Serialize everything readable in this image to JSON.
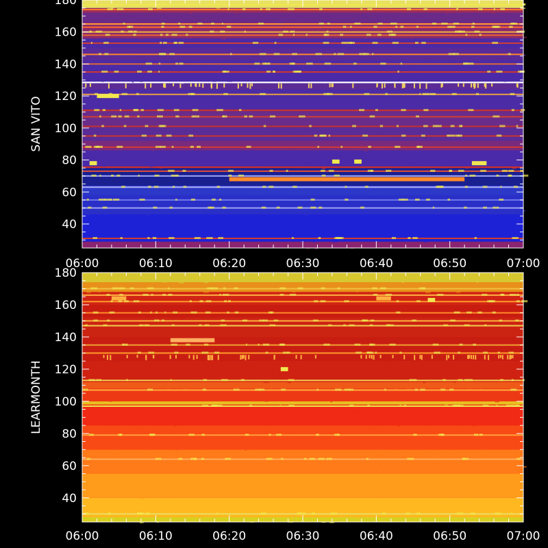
{
  "chart_data": [
    {
      "type": "heatmap",
      "station": "SAN VITO",
      "ylabel": "SAN VITO",
      "ylim": [
        25,
        180
      ],
      "yticks": [
        40,
        60,
        80,
        100,
        120,
        140,
        160,
        180
      ],
      "yticklabels": [
        "40",
        "60",
        "80",
        "100",
        "120",
        "140",
        "160",
        "180"
      ],
      "xlim": [
        "06:00",
        "07:00"
      ],
      "xticklabels": [
        "06:00",
        "06:10",
        "06:20",
        "06:30",
        "06:40",
        "06:50",
        "07:00"
      ],
      "colors": {
        "background": "#1c1fd0",
        "mid": "#4a2eaa",
        "high": "#b8283c",
        "peak": "#f0e850",
        "hot": "#ff8a2a"
      },
      "bands": [
        {
          "y0": 25,
          "y1": 29,
          "color": "#8a2470"
        },
        {
          "y0": 29,
          "y1": 46,
          "color": "#1e22d6"
        },
        {
          "y0": 46,
          "y1": 58,
          "color": "#2a2fc8"
        },
        {
          "y0": 58,
          "y1": 64,
          "color": "#2c38c8"
        },
        {
          "y0": 64,
          "y1": 75,
          "color": "#1a2090"
        },
        {
          "y0": 75,
          "y1": 76,
          "color": "#d0302a"
        },
        {
          "y0": 76,
          "y1": 86,
          "color": "#4a2aa8"
        },
        {
          "y0": 86,
          "y1": 92,
          "color": "#7a2a7c"
        },
        {
          "y0": 92,
          "y1": 100,
          "color": "#5a2c98"
        },
        {
          "y0": 100,
          "y1": 112,
          "color": "#6a2c8a"
        },
        {
          "y0": 112,
          "y1": 124,
          "color": "#4c2ca6"
        },
        {
          "y0": 124,
          "y1": 128,
          "color": "#5c2c96"
        },
        {
          "y0": 128,
          "y1": 129,
          "color": "#ffffff"
        },
        {
          "y0": 129,
          "y1": 142,
          "color": "#4a2aa8"
        },
        {
          "y0": 142,
          "y1": 150,
          "color": "#5a2a98"
        },
        {
          "y0": 150,
          "y1": 156,
          "color": "#4c2aa6"
        },
        {
          "y0": 156,
          "y1": 166,
          "color": "#8a2a6c"
        },
        {
          "y0": 166,
          "y1": 172,
          "color": "#6a2a88"
        },
        {
          "y0": 172,
          "y1": 175,
          "color": "#9a2c5c"
        },
        {
          "y0": 175,
          "y1": 180,
          "color": "#e8e060"
        }
      ],
      "lines": [
        {
          "y": 31,
          "color": "#d0402a"
        },
        {
          "y": 50,
          "color": "#9ea4f4"
        },
        {
          "y": 55,
          "color": "#7078e8"
        },
        {
          "y": 63,
          "color": "#b0b4f8"
        },
        {
          "y": 70,
          "color": "#9ea4f4"
        },
        {
          "y": 73,
          "color": "#e05038"
        },
        {
          "y": 88,
          "color": "#d03a30"
        },
        {
          "y": 95,
          "color": "#c8342e"
        },
        {
          "y": 101,
          "color": "#c0322e"
        },
        {
          "y": 107,
          "color": "#d04030"
        },
        {
          "y": 111,
          "color": "#c8342e"
        },
        {
          "y": 121,
          "color": "#e8a040"
        },
        {
          "y": 135,
          "color": "#d03830"
        },
        {
          "y": 140,
          "color": "#e06a30"
        },
        {
          "y": 146,
          "color": "#ff8a2a"
        },
        {
          "y": 153,
          "color": "#d04030"
        },
        {
          "y": 158,
          "color": "#e86a30"
        },
        {
          "y": 160,
          "color": "#f0b040"
        },
        {
          "y": 163,
          "color": "#ff6a2a"
        },
        {
          "y": 165,
          "color": "#ff9a3a"
        },
        {
          "y": 174,
          "color": "#ff7a2a"
        },
        {
          "y": 177,
          "color": "#f0e850"
        }
      ],
      "bursts": [
        {
          "t0": "06:01",
          "t1": "06:02",
          "y": 78,
          "color": "#f0e850"
        },
        {
          "t0": "06:34",
          "t1": "06:35",
          "y": 79,
          "color": "#f0e850"
        },
        {
          "t0": "06:37",
          "t1": "06:38",
          "y": 79,
          "color": "#f0e850"
        },
        {
          "t0": "06:53",
          "t1": "06:55",
          "y": 78,
          "color": "#f0e850"
        },
        {
          "t0": "06:20",
          "t1": "06:52",
          "y": 68,
          "color": "#ff8a2a"
        },
        {
          "t0": "06:02",
          "t1": "06:05",
          "y": 120,
          "color": "#f0e850"
        },
        {
          "t0": "06:00",
          "t1": "07:00",
          "y": 127,
          "color": "#f0d060"
        }
      ]
    },
    {
      "type": "heatmap",
      "station": "LEARMONTH",
      "ylabel": "LEARMONTH",
      "ylim": [
        25,
        180
      ],
      "yticks": [
        40,
        60,
        80,
        100,
        120,
        140,
        160,
        180
      ],
      "yticklabels": [
        "40",
        "60",
        "80",
        "100",
        "120",
        "140",
        "160",
        "180"
      ],
      "xlim": [
        "06:00",
        "07:00"
      ],
      "xticklabels": [
        "06:00",
        "06:10",
        "06:20",
        "06:30",
        "06:40",
        "06:50",
        "07:00"
      ],
      "colors": {
        "background": "#e8281a",
        "mid": "#f25a14",
        "high": "#ff9a22",
        "peak": "#f0e850"
      },
      "bands": [
        {
          "y0": 25,
          "y1": 28,
          "color": "#d8d020"
        },
        {
          "y0": 28,
          "y1": 40,
          "color": "#ffb820"
        },
        {
          "y0": 40,
          "y1": 55,
          "color": "#ff9c1c"
        },
        {
          "y0": 55,
          "y1": 70,
          "color": "#ff7a18"
        },
        {
          "y0": 70,
          "y1": 85,
          "color": "#f84a14"
        },
        {
          "y0": 85,
          "y1": 98,
          "color": "#f02a14"
        },
        {
          "y0": 98,
          "y1": 100,
          "color": "#e8c020"
        },
        {
          "y0": 100,
          "y1": 108,
          "color": "#ee3a14"
        },
        {
          "y0": 108,
          "y1": 112,
          "color": "#f05a18"
        },
        {
          "y0": 112,
          "y1": 125,
          "color": "#d02212"
        },
        {
          "y0": 125,
          "y1": 140,
          "color": "#c81e12"
        },
        {
          "y0": 140,
          "y1": 152,
          "color": "#cc2412"
        },
        {
          "y0": 152,
          "y1": 160,
          "color": "#c81c10"
        },
        {
          "y0": 160,
          "y1": 168,
          "color": "#d02414"
        },
        {
          "y0": 168,
          "y1": 174,
          "color": "#e8901a"
        },
        {
          "y0": 174,
          "y1": 180,
          "color": "#d8c830"
        }
      ],
      "lines": [
        {
          "y": 30,
          "color": "#e8e060"
        },
        {
          "y": 64,
          "color": "#ffb060"
        },
        {
          "y": 79,
          "color": "#ffa03a"
        },
        {
          "y": 97,
          "color": "#f0e850"
        },
        {
          "y": 107,
          "color": "#ffb040"
        },
        {
          "y": 113,
          "color": "#f0d050"
        },
        {
          "y": 130,
          "color": "#ff9a2a"
        },
        {
          "y": 135,
          "color": "#f0a030"
        },
        {
          "y": 147,
          "color": "#f0d050"
        },
        {
          "y": 150,
          "color": "#ffb040"
        },
        {
          "y": 155,
          "color": "#ff8a2a"
        },
        {
          "y": 162,
          "color": "#ff9a2a"
        },
        {
          "y": 166,
          "color": "#ffb040"
        },
        {
          "y": 170,
          "color": "#f0c040"
        }
      ],
      "bursts": [
        {
          "t0": "06:12",
          "t1": "06:18",
          "y": 138,
          "color": "#ffb060"
        },
        {
          "t0": "06:27",
          "t1": "06:28",
          "y": 120,
          "color": "#f0e850"
        },
        {
          "t0": "06:47",
          "t1": "06:48",
          "y": 163,
          "color": "#f0e850"
        },
        {
          "t0": "06:04",
          "t1": "06:06",
          "y": 164,
          "color": "#ffb040"
        },
        {
          "t0": "06:40",
          "t1": "06:42",
          "y": 164,
          "color": "#ffb040"
        },
        {
          "t0": "06:00",
          "t1": "07:00",
          "y": 128,
          "color": "#ffb040"
        }
      ]
    }
  ]
}
